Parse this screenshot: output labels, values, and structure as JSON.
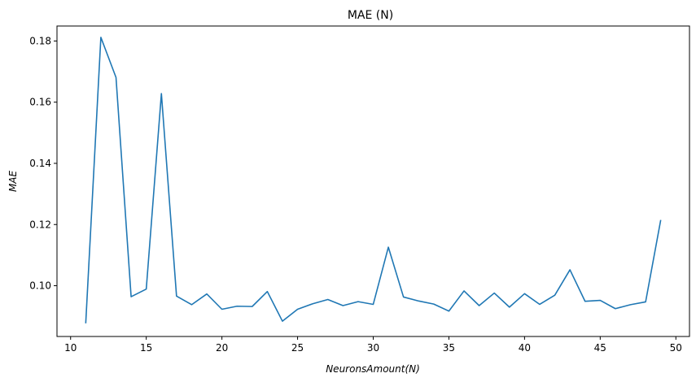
{
  "chart_data": {
    "type": "line",
    "title": "MAE (N)",
    "xlabel": "NeuronsAmount(N)",
    "ylabel": "MAE",
    "xlim": [
      9.1,
      50.9
    ],
    "ylim": [
      0.0834,
      0.1849
    ],
    "xticks": [
      10,
      15,
      20,
      25,
      30,
      35,
      40,
      45,
      50
    ],
    "yticks": [
      0.1,
      0.12,
      0.14,
      0.16,
      0.18
    ],
    "ytick_labels": [
      "0.10",
      "0.12",
      "0.14",
      "0.16",
      "0.18"
    ],
    "grid": false,
    "series": [
      {
        "color": "#1f77b4",
        "x": [
          11,
          12,
          13,
          14,
          15,
          16,
          17,
          18,
          19,
          20,
          21,
          22,
          23,
          24,
          25,
          26,
          27,
          28,
          29,
          30,
          31,
          32,
          33,
          34,
          35,
          36,
          37,
          38,
          39,
          40,
          41,
          42,
          43,
          44,
          45,
          46,
          47,
          48,
          49
        ],
        "y": [
          0.0877,
          0.1812,
          0.1681,
          0.0964,
          0.0989,
          0.1628,
          0.0966,
          0.0938,
          0.0973,
          0.0923,
          0.0933,
          0.0932,
          0.0981,
          0.0884,
          0.0923,
          0.0941,
          0.0955,
          0.0935,
          0.0948,
          0.0939,
          0.1126,
          0.0963,
          0.095,
          0.094,
          0.0917,
          0.0983,
          0.0935,
          0.0976,
          0.093,
          0.0974,
          0.0939,
          0.0969,
          0.1052,
          0.0949,
          0.0952,
          0.0925,
          0.0938,
          0.0947,
          0.1215
        ]
      }
    ]
  }
}
